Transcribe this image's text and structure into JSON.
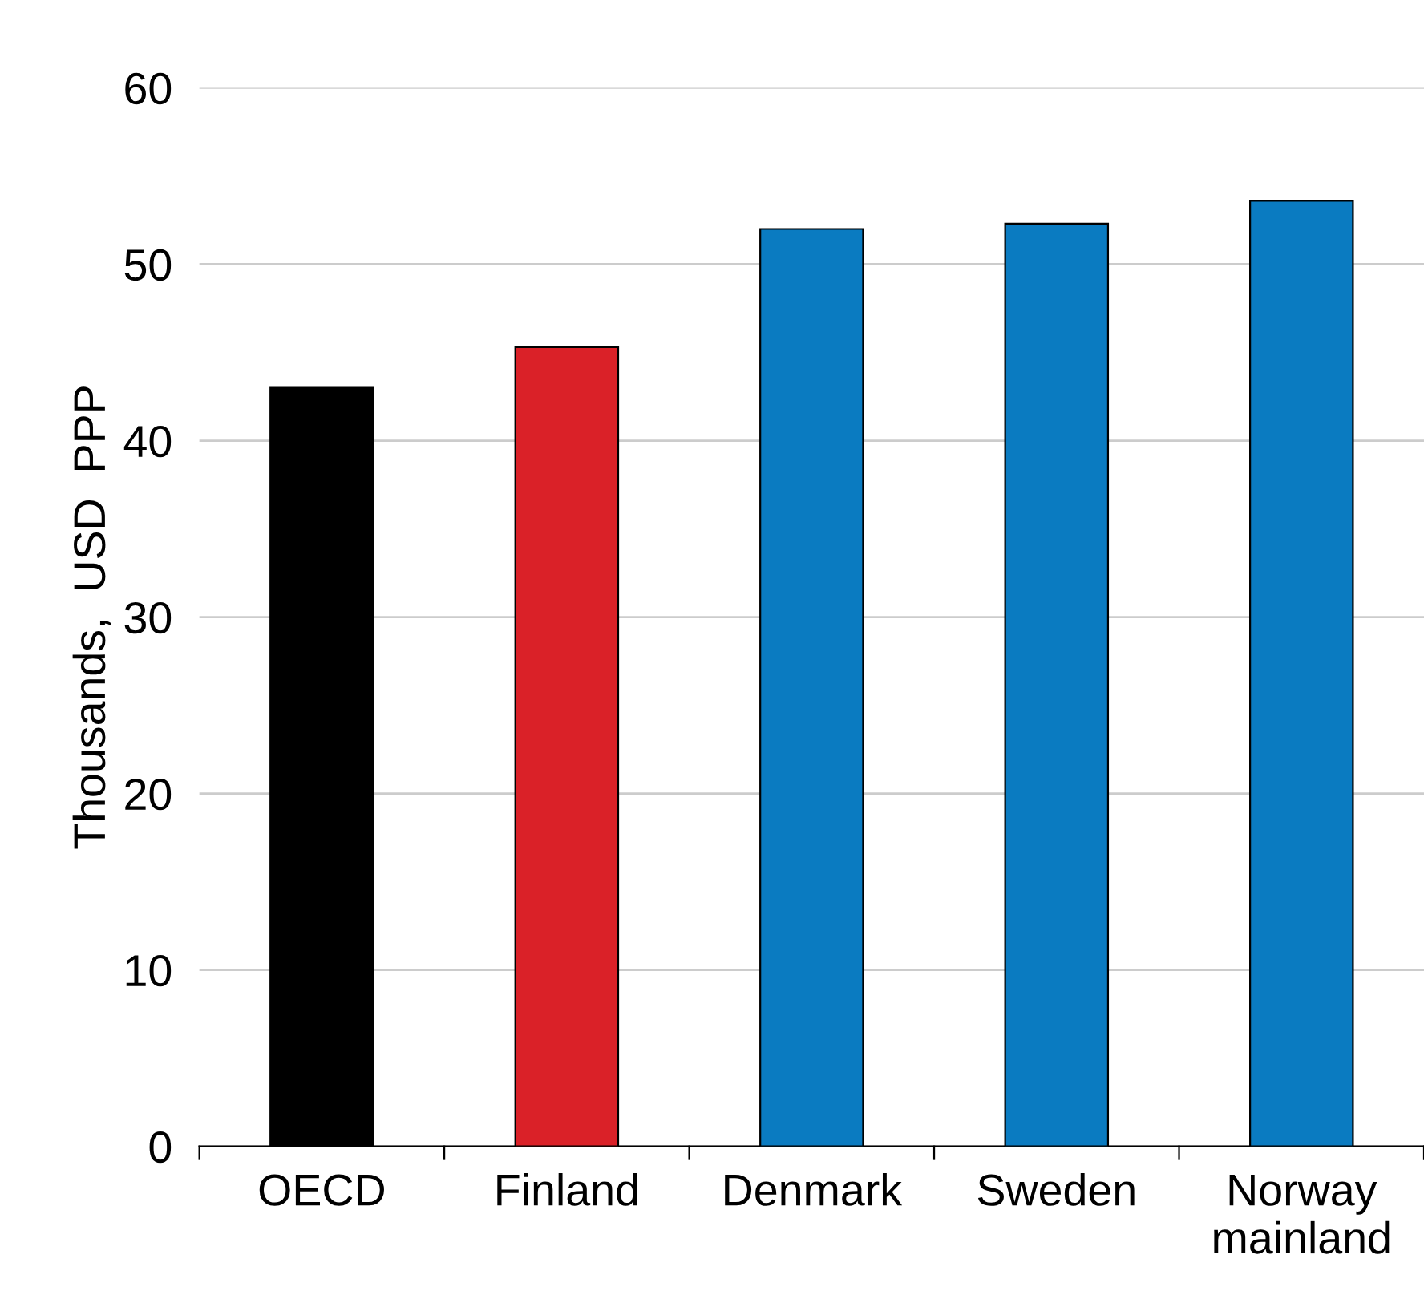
{
  "chart_data": {
    "type": "bar",
    "ylabel": "Thousands,  USD  PPP",
    "categories": [
      "OECD",
      "Finland",
      "Denmark",
      "Sweden",
      "Norway\nmainland"
    ],
    "values": [
      43.0,
      45.3,
      52.0,
      52.3,
      53.6
    ],
    "colors": [
      "#000000",
      "#da2128",
      "#0a7bc1",
      "#0a7bc1",
      "#0a7bc1"
    ],
    "ylim": [
      0,
      60
    ],
    "yticks": [
      0,
      10,
      20,
      30,
      40,
      50,
      60
    ],
    "grid": "y",
    "legend": false
  }
}
